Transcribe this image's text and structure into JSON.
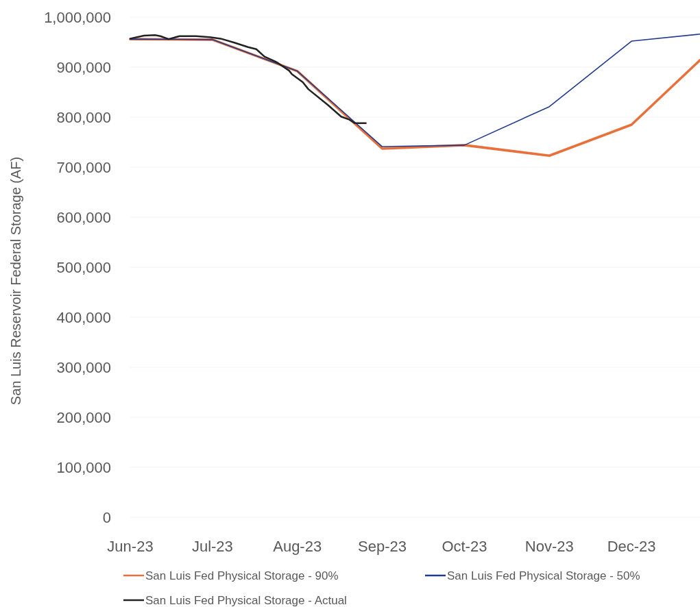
{
  "chart_data": {
    "type": "line",
    "ylabel": "San Luis Reservoir Federal Storage (AF)",
    "xlim": [
      "2023-06-01",
      "2023-12-26"
    ],
    "xticks": [
      {
        "value": "2023-06-01",
        "label": "Jun-23"
      },
      {
        "value": "2023-07-01",
        "label": "Jul-23"
      },
      {
        "value": "2023-08-01",
        "label": "Aug-23"
      },
      {
        "value": "2023-09-01",
        "label": "Sep-23"
      },
      {
        "value": "2023-10-01",
        "label": "Oct-23"
      },
      {
        "value": "2023-11-01",
        "label": "Nov-23"
      },
      {
        "value": "2023-12-01",
        "label": "Dec-23"
      }
    ],
    "ylim": [
      0,
      1000000
    ],
    "yticks": [
      0,
      {
        "value": 100000,
        "label": "100,000"
      },
      {
        "value": 200000,
        "label": "200,000"
      },
      {
        "value": 300000,
        "label": "300,000"
      },
      {
        "value": 400000,
        "label": "400,000"
      },
      {
        "value": 500000,
        "label": "500,000"
      },
      {
        "value": 600000,
        "label": "600,000"
      },
      {
        "value": 700000,
        "label": "700,000"
      },
      {
        "value": 800000,
        "label": "800,000"
      },
      {
        "value": 900000,
        "label": "900,000"
      },
      {
        "value": 1000000,
        "label": "1,000,000"
      }
    ],
    "grid": "y",
    "legend": "bottom",
    "line_style": "solid",
    "marker": "none",
    "series": [
      {
        "name": "San Luis Fed Physical Storage - 90%",
        "color": "#e8703a",
        "x": [
          "2023-06-01",
          "2023-07-01",
          "2023-08-01",
          "2023-09-01",
          "2023-10-01",
          "2023-11-01",
          "2023-12-01",
          "2023-12-26"
        ],
        "values": [
          956000,
          955000,
          892000,
          737000,
          744000,
          723000,
          785000,
          914000
        ]
      },
      {
        "name": "San Luis Fed Physical Storage - 50%",
        "color": "#1f3a8f",
        "x": [
          "2023-06-01",
          "2023-07-01",
          "2023-08-01",
          "2023-09-01",
          "2023-10-01",
          "2023-11-01",
          "2023-12-01",
          "2023-12-26"
        ],
        "values": [
          956000,
          955000,
          892000,
          741000,
          744000,
          821000,
          952000,
          966000
        ]
      },
      {
        "name": "San Luis Fed Physical Storage - Actual",
        "color": "#222222",
        "x": [
          "2023-06-01",
          "2023-06-06",
          "2023-06-10",
          "2023-06-12",
          "2023-06-15",
          "2023-06-19",
          "2023-06-25",
          "2023-06-30",
          "2023-07-04",
          "2023-07-09",
          "2023-07-14",
          "2023-07-17",
          "2023-07-20",
          "2023-07-24",
          "2023-07-25",
          "2023-07-29",
          "2023-07-30",
          "2023-08-03",
          "2023-08-05",
          "2023-08-12",
          "2023-08-17",
          "2023-08-20",
          "2023-08-22",
          "2023-08-26"
        ],
        "values": [
          957000,
          963000,
          964000,
          962000,
          956000,
          962000,
          962000,
          960000,
          957000,
          949000,
          940000,
          936000,
          921000,
          911000,
          908000,
          893000,
          886000,
          870000,
          856000,
          825000,
          801000,
          795000,
          788000,
          788000
        ]
      }
    ]
  }
}
